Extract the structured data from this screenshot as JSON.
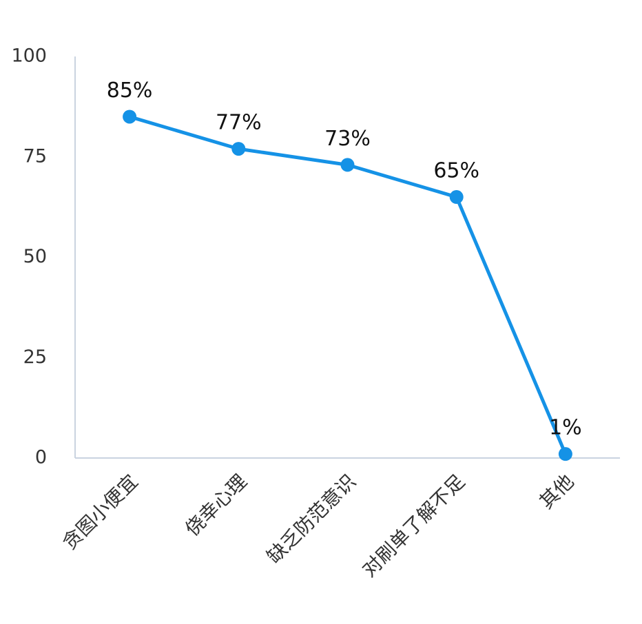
{
  "chart_data": {
    "type": "line",
    "categories": [
      "贪图小便宜",
      "侥幸心理",
      "缺乏防范意识",
      "对刷单了解不足",
      "其他"
    ],
    "values": [
      85,
      77,
      73,
      65,
      1
    ],
    "value_labels": [
      "85%",
      "77%",
      "73%",
      "65%",
      "1%"
    ],
    "color": "#1592e6",
    "ylim": [
      0,
      100
    ],
    "yticks": [
      0,
      25,
      50,
      75,
      100
    ],
    "grid": false
  }
}
